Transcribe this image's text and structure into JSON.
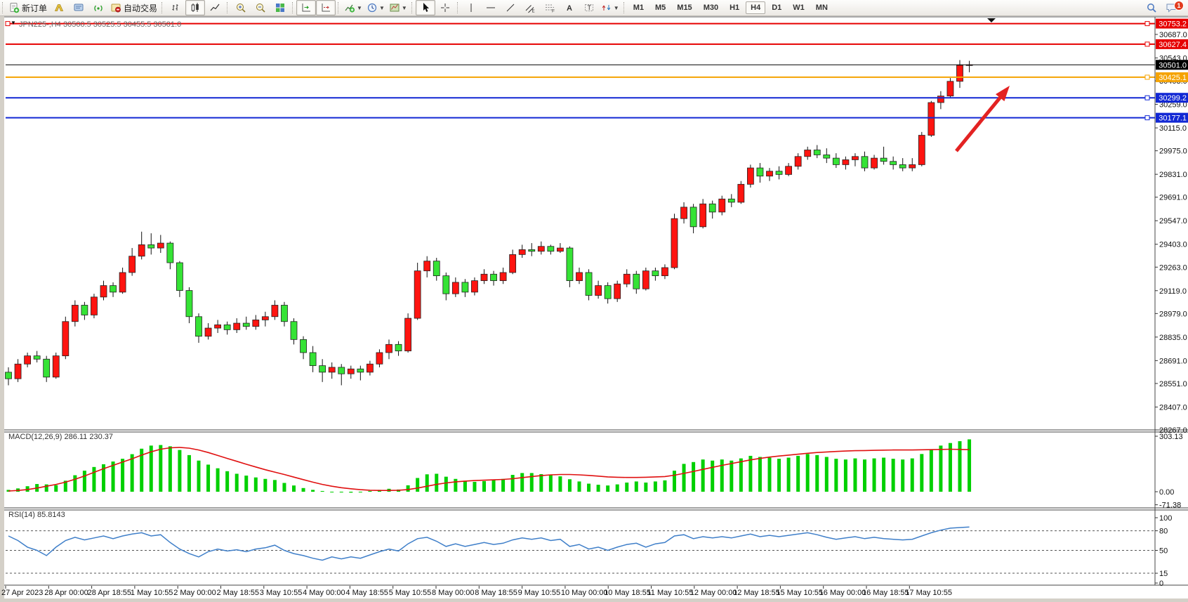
{
  "toolbar": {
    "new_order_label": "新订单",
    "autotrading_label": "自动交易",
    "timeframe_labels": [
      "M1",
      "M5",
      "M15",
      "M30",
      "H1",
      "H4",
      "D1",
      "W1",
      "MN"
    ],
    "active_timeframe": "H4",
    "chat_badge_count": "1",
    "icon_names": [
      "new-order",
      "metaeditor",
      "terminal",
      "signals",
      "autotrading",
      "bar-chart",
      "candlestick-chart",
      "line-chart",
      "zoom-in",
      "zoom-out",
      "tile-windows",
      "auto-scroll",
      "chart-shift",
      "indicators",
      "periods",
      "templates",
      "cursor",
      "crosshair",
      "vertical-line",
      "horizontal-line",
      "trend-line",
      "equidistant-channel",
      "fibonacci",
      "text",
      "text-label",
      "arrows",
      "search",
      "chat"
    ]
  },
  "chart": {
    "title": "JPN225-,H4  30500.5 30525.5 30455.5 30501.0",
    "symbol_period": "JPN225-,H4",
    "ohlc": {
      "open": "30500.5",
      "high": "30525.5",
      "low": "30455.5",
      "close": "30501.0"
    },
    "macd_label": "MACD(12,26,9) 286.11 230.37",
    "rsi_label": "RSI(14) 85.8143",
    "colors": {
      "up_candle": "#fe1410",
      "down_candle": "#35e335",
      "resistance_line": "#e60000",
      "orange_line": "#f5a302",
      "support_line": "#1228d4",
      "current_price": "#000000",
      "macd_histogram": "#00d000",
      "macd_signal": "#e01010",
      "rsi_line": "#3f7fc9",
      "arrow": "#e32222"
    }
  },
  "chart_data": {
    "type": "candlestick",
    "symbol": "JPN225-",
    "period": "H4",
    "current_price": 30501.0,
    "price_axis_ticks": [
      30687.0,
      30543.0,
      30403.0,
      30259.0,
      30115.0,
      29975.0,
      29831.0,
      29691.0,
      29547.0,
      29403.0,
      29263.0,
      29119.0,
      28979.0,
      28835.0,
      28691.0,
      28551.0,
      28407.0,
      28267.0
    ],
    "time_labels": [
      "27 Apr 2023",
      "28 Apr 00:00",
      "28 Apr 18:55",
      "1 May 10:55",
      "2 May 00:00",
      "2 May 18:55",
      "3 May 10:55",
      "4 May 00:00",
      "4 May 18:55",
      "5 May 10:55",
      "8 May 00:00",
      "8 May 18:55",
      "9 May 10:55",
      "10 May 00:00",
      "10 May 18:55",
      "11 May 10:55",
      "12 May 00:00",
      "12 May 18:55",
      "15 May 10:55",
      "16 May 00:00",
      "16 May 18:55",
      "17 May 10:55"
    ],
    "hlines": [
      {
        "price": 30753.2,
        "color": "#e60000",
        "width": 2,
        "left_handle": true
      },
      {
        "price": 30627.4,
        "color": "#e60000",
        "width": 2,
        "left_handle": false
      },
      {
        "price": 30425.1,
        "color": "#f5a302",
        "width": 2,
        "left_handle": false
      },
      {
        "price": 30299.2,
        "color": "#1228d4",
        "width": 2,
        "left_handle": false
      },
      {
        "price": 30177.1,
        "color": "#1228d4",
        "width": 2,
        "left_handle": false
      }
    ],
    "candles": [
      [
        28620,
        28650,
        28540,
        28580
      ],
      [
        28580,
        28700,
        28560,
        28670
      ],
      [
        28670,
        28740,
        28650,
        28720
      ],
      [
        28720,
        28750,
        28680,
        28700
      ],
      [
        28700,
        28720,
        28560,
        28590
      ],
      [
        28590,
        28740,
        28580,
        28720
      ],
      [
        28720,
        28960,
        28700,
        28930
      ],
      [
        28930,
        29060,
        28900,
        29030
      ],
      [
        29030,
        29050,
        28940,
        28970
      ],
      [
        28970,
        29100,
        28950,
        29080
      ],
      [
        29080,
        29180,
        29060,
        29150
      ],
      [
        29150,
        29170,
        29080,
        29110
      ],
      [
        29110,
        29260,
        29100,
        29230
      ],
      [
        29230,
        29380,
        29210,
        29330
      ],
      [
        29330,
        29480,
        29310,
        29400
      ],
      [
        29400,
        29470,
        29340,
        29380
      ],
      [
        29380,
        29460,
        29350,
        29410
      ],
      [
        29410,
        29420,
        29250,
        29290
      ],
      [
        29290,
        29300,
        29080,
        29120
      ],
      [
        29120,
        29140,
        28920,
        28960
      ],
      [
        28960,
        28980,
        28800,
        28840
      ],
      [
        28840,
        28920,
        28820,
        28890
      ],
      [
        28890,
        28940,
        28860,
        28910
      ],
      [
        28910,
        28930,
        28850,
        28880
      ],
      [
        28880,
        28950,
        28860,
        28920
      ],
      [
        28920,
        28960,
        28880,
        28900
      ],
      [
        28900,
        28970,
        28880,
        28940
      ],
      [
        28940,
        28990,
        28900,
        28960
      ],
      [
        28960,
        29060,
        28940,
        29030
      ],
      [
        29030,
        29050,
        28900,
        28930
      ],
      [
        28930,
        28950,
        28790,
        28820
      ],
      [
        28820,
        28840,
        28700,
        28740
      ],
      [
        28740,
        28780,
        28620,
        28660
      ],
      [
        28660,
        28700,
        28560,
        28620
      ],
      [
        28620,
        28680,
        28580,
        28650
      ],
      [
        28650,
        28670,
        28540,
        28610
      ],
      [
        28610,
        28660,
        28580,
        28640
      ],
      [
        28640,
        28660,
        28570,
        28620
      ],
      [
        28620,
        28690,
        28600,
        28670
      ],
      [
        28670,
        28760,
        28650,
        28740
      ],
      [
        28740,
        28820,
        28700,
        28790
      ],
      [
        28790,
        28810,
        28720,
        28750
      ],
      [
        28750,
        28980,
        28740,
        28950
      ],
      [
        28950,
        29290,
        28940,
        29240
      ],
      [
        29240,
        29330,
        29200,
        29300
      ],
      [
        29300,
        29320,
        29180,
        29210
      ],
      [
        29210,
        29230,
        29060,
        29100
      ],
      [
        29100,
        29200,
        29080,
        29170
      ],
      [
        29170,
        29190,
        29080,
        29110
      ],
      [
        29110,
        29200,
        29090,
        29180
      ],
      [
        29180,
        29250,
        29160,
        29220
      ],
      [
        29220,
        29240,
        29150,
        29180
      ],
      [
        29180,
        29260,
        29160,
        29230
      ],
      [
        29230,
        29370,
        29220,
        29340
      ],
      [
        29340,
        29400,
        29320,
        29370
      ],
      [
        29370,
        29410,
        29330,
        29360
      ],
      [
        29360,
        29420,
        29340,
        29390
      ],
      [
        29390,
        29400,
        29340,
        29360
      ],
      [
        29360,
        29410,
        29350,
        29380
      ],
      [
        29380,
        29390,
        29140,
        29180
      ],
      [
        29180,
        29260,
        29160,
        29230
      ],
      [
        29230,
        29250,
        29060,
        29090
      ],
      [
        29090,
        29180,
        29070,
        29150
      ],
      [
        29150,
        29170,
        29040,
        29070
      ],
      [
        29070,
        29180,
        29050,
        29160
      ],
      [
        29160,
        29250,
        29140,
        29220
      ],
      [
        29220,
        29240,
        29100,
        29130
      ],
      [
        29130,
        29260,
        29120,
        29240
      ],
      [
        29240,
        29260,
        29180,
        29210
      ],
      [
        29210,
        29280,
        29190,
        29260
      ],
      [
        29260,
        29590,
        29250,
        29560
      ],
      [
        29560,
        29660,
        29530,
        29630
      ],
      [
        29630,
        29650,
        29470,
        29510
      ],
      [
        29510,
        29680,
        29500,
        29650
      ],
      [
        29650,
        29670,
        29560,
        29600
      ],
      [
        29600,
        29700,
        29580,
        29680
      ],
      [
        29680,
        29710,
        29630,
        29660
      ],
      [
        29660,
        29790,
        29650,
        29770
      ],
      [
        29770,
        29890,
        29750,
        29870
      ],
      [
        29870,
        29900,
        29780,
        29820
      ],
      [
        29820,
        29870,
        29790,
        29850
      ],
      [
        29850,
        29880,
        29800,
        29830
      ],
      [
        29830,
        29900,
        29820,
        29880
      ],
      [
        29880,
        29960,
        29860,
        29940
      ],
      [
        29940,
        30000,
        29920,
        29980
      ],
      [
        29980,
        30010,
        29930,
        29950
      ],
      [
        29950,
        29990,
        29900,
        29930
      ],
      [
        29930,
        29960,
        29870,
        29890
      ],
      [
        29890,
        29940,
        29860,
        29920
      ],
      [
        29920,
        29960,
        29880,
        29940
      ],
      [
        29940,
        29970,
        29850,
        29870
      ],
      [
        29870,
        29950,
        29860,
        29930
      ],
      [
        29930,
        30000,
        29890,
        29910
      ],
      [
        29910,
        29940,
        29860,
        29890
      ],
      [
        29890,
        29930,
        29850,
        29870
      ],
      [
        29870,
        29930,
        29850,
        29890
      ],
      [
        29890,
        30090,
        29880,
        30070
      ],
      [
        30070,
        30280,
        30060,
        30270
      ],
      [
        30270,
        30340,
        30230,
        30310
      ],
      [
        30310,
        30420,
        30300,
        30400
      ],
      [
        30400,
        30530,
        30360,
        30498
      ],
      [
        30500.5,
        30525.5,
        30455.5,
        30501.0
      ]
    ],
    "macd": {
      "params": "12,26,9",
      "value": 286.11,
      "signal_value": 230.37,
      "axis_tick_labels": [
        "303.13",
        "0.00",
        "-71.38"
      ],
      "histogram": [
        10,
        18,
        30,
        42,
        40,
        36,
        60,
        90,
        115,
        135,
        150,
        165,
        180,
        205,
        235,
        252,
        255,
        248,
        228,
        200,
        170,
        148,
        128,
        112,
        98,
        88,
        78,
        70,
        64,
        48,
        34,
        20,
        10,
        4,
        0,
        -4,
        -5,
        -2,
        4,
        10,
        16,
        12,
        35,
        75,
        95,
        98,
        82,
        70,
        60,
        54,
        58,
        64,
        70,
        92,
        102,
        102,
        96,
        90,
        84,
        68,
        56,
        44,
        38,
        34,
        40,
        50,
        56,
        50,
        56,
        62,
        115,
        152,
        162,
        176,
        170,
        176,
        170,
        182,
        196,
        190,
        186,
        180,
        186,
        196,
        206,
        200,
        190,
        180,
        176,
        182,
        176,
        182,
        186,
        180,
        176,
        182,
        206,
        232,
        252,
        266,
        276,
        286
      ],
      "signal": [
        4,
        7,
        12,
        20,
        30,
        40,
        52,
        68,
        86,
        106,
        126,
        144,
        162,
        180,
        200,
        218,
        232,
        240,
        242,
        238,
        228,
        214,
        198,
        182,
        166,
        150,
        135,
        120,
        107,
        94,
        80,
        66,
        52,
        40,
        30,
        22,
        16,
        11,
        8,
        7,
        7,
        8,
        12,
        20,
        30,
        40,
        48,
        54,
        58,
        61,
        63,
        65,
        67,
        71,
        77,
        83,
        88,
        92,
        94,
        94,
        92,
        89,
        85,
        81,
        79,
        78,
        78,
        79,
        81,
        83,
        90,
        100,
        111,
        122,
        133,
        144,
        154,
        164,
        174,
        182,
        189,
        195,
        200,
        205,
        210,
        214,
        217,
        220,
        222,
        224,
        225,
        226,
        227,
        228,
        228,
        228,
        229,
        230,
        231,
        232,
        231,
        230
      ]
    },
    "rsi": {
      "period": 14,
      "value": 85.8143,
      "levels": [
        80,
        50,
        15
      ],
      "axis_tick_labels": [
        "100",
        "80",
        "50",
        "15",
        "0"
      ],
      "values": [
        72,
        65,
        55,
        50,
        42,
        55,
        65,
        70,
        66,
        69,
        72,
        68,
        72,
        75,
        77,
        72,
        74,
        62,
        52,
        45,
        40,
        48,
        52,
        49,
        51,
        48,
        52,
        54,
        58,
        50,
        45,
        42,
        38,
        35,
        40,
        37,
        40,
        38,
        43,
        48,
        52,
        49,
        60,
        68,
        70,
        64,
        56,
        60,
        56,
        59,
        62,
        59,
        61,
        66,
        69,
        67,
        69,
        65,
        67,
        56,
        59,
        52,
        55,
        50,
        55,
        59,
        61,
        55,
        60,
        62,
        72,
        74,
        68,
        71,
        69,
        71,
        69,
        72,
        75,
        71,
        73,
        71,
        73,
        75,
        77,
        74,
        70,
        67,
        69,
        71,
        68,
        70,
        68,
        67,
        66,
        67,
        72,
        77,
        81,
        84,
        85,
        85.81
      ]
    }
  }
}
